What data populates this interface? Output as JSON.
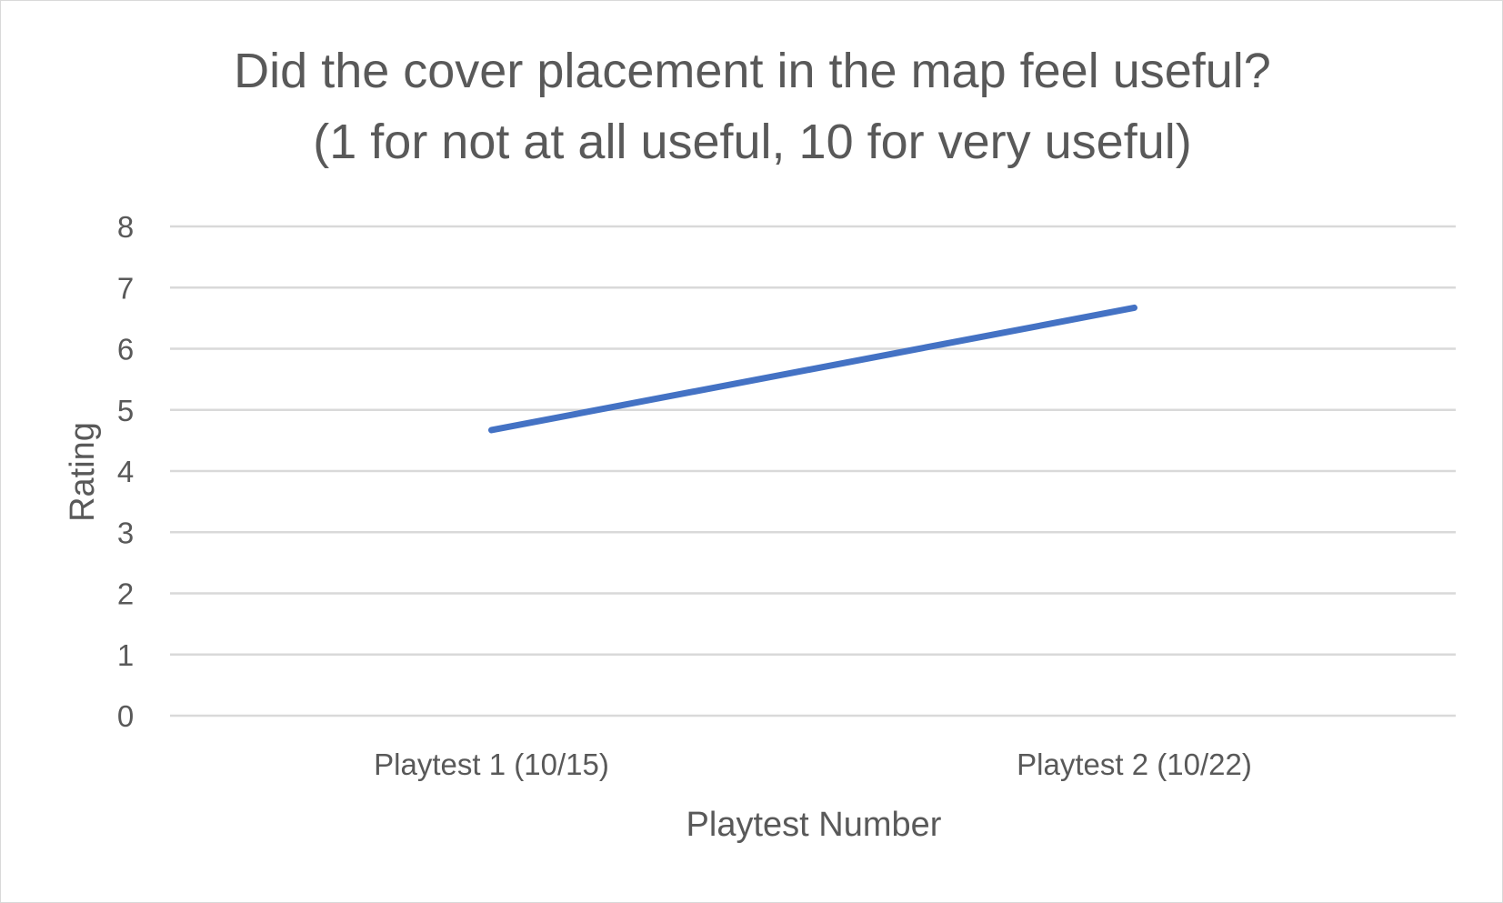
{
  "chart_data": {
    "type": "line",
    "title": "Did the cover placement in the map feel useful?",
    "subtitle": "(1 for not at all useful, 10 for very useful)",
    "xlabel": "Playtest Number",
    "ylabel": "Rating",
    "categories": [
      "Playtest 1 (10/15)",
      "Playtest 2 (10/22)"
    ],
    "series": [
      {
        "values": [
          4.67,
          6.67
        ],
        "color": "#4472C4"
      }
    ],
    "ylim": [
      0,
      8
    ],
    "yticks": [
      "0",
      "1",
      "2",
      "3",
      "4",
      "5",
      "6",
      "7",
      "8"
    ],
    "grid": true,
    "legend": "none",
    "colors": {
      "text": "#595959",
      "grid": "#d9d9d9",
      "line": "#4472C4"
    }
  }
}
